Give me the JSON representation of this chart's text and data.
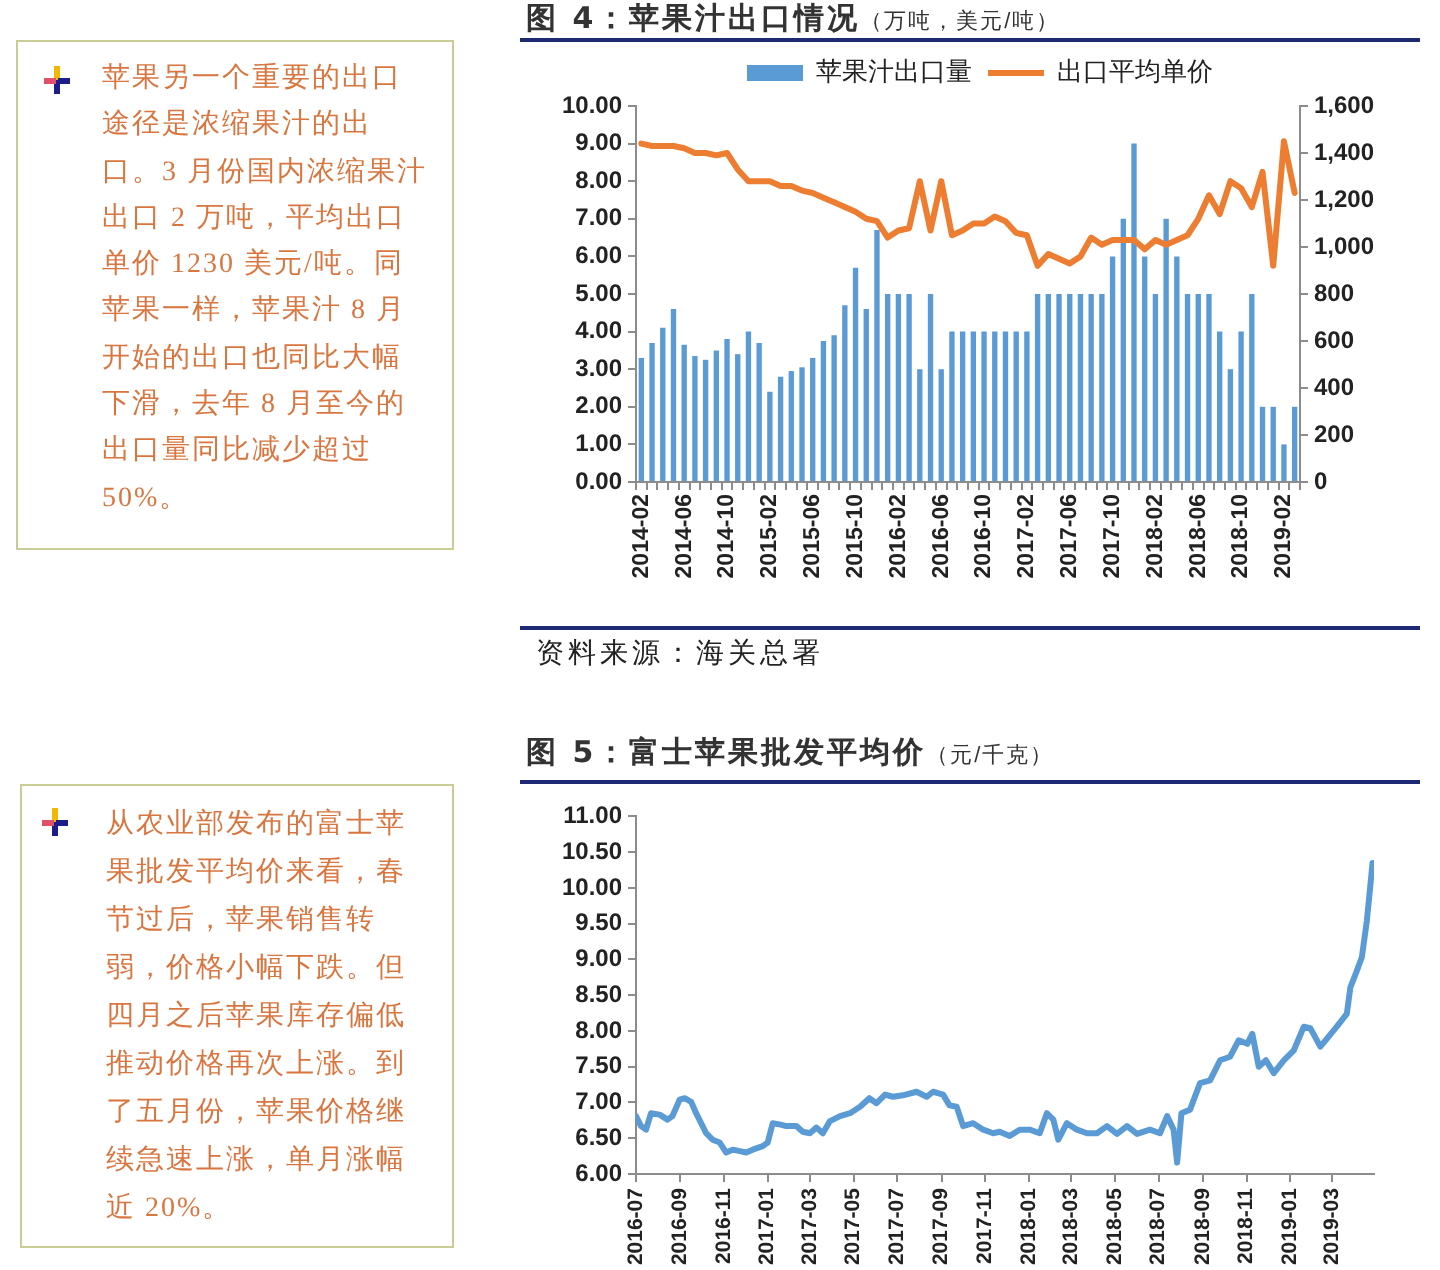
{
  "chart_data": [
    {
      "type": "other",
      "annotations": [
        "苹果另一个重要的出口途径是浓缩果汁的出口。3 月份国内浓缩果汁出口 2 万吨，平均出口单价 1230 美元/吨。同苹果一样，苹果汁 8 月开始的出口也同比大幅下滑，去年 8 月至今的出口量同比减少超过 50%。"
      ]
    },
    {
      "type": "bar",
      "title": "图 4：苹果汁出口情况",
      "subtitle": "（万吨，美元/吨）",
      "categories": [
        "2014-02",
        null,
        null,
        null,
        "2014-06",
        null,
        null,
        null,
        "2014-10",
        null,
        null,
        null,
        "2015-02",
        null,
        null,
        null,
        "2015-06",
        null,
        null,
        null,
        "2015-10",
        null,
        null,
        null,
        "2016-02",
        null,
        null,
        null,
        "2016-06",
        null,
        null,
        null,
        "2016-10",
        null,
        null,
        null,
        "2017-02",
        null,
        null,
        null,
        "2017-06",
        null,
        null,
        null,
        "2017-10",
        null,
        null,
        null,
        "2018-02",
        null,
        null,
        null,
        "2018-06",
        null,
        null,
        null,
        "2018-10",
        null,
        null,
        null,
        "2019-02",
        null
      ],
      "series": [
        {
          "name": "苹果汁出口量",
          "type": "bar",
          "color": "#5b9bd5",
          "values": [
            3.3,
            3.7,
            4.1,
            4.6,
            3.65,
            3.35,
            3.25,
            3.5,
            3.8,
            3.4,
            4.0,
            3.7,
            2.4,
            2.8,
            2.95,
            3.05,
            3.3,
            3.75,
            3.9,
            4.7,
            5.7,
            4.6,
            6.7,
            5.0,
            5.0,
            5.0,
            3.0,
            5.0,
            3.0,
            4.0,
            4.0,
            4.0,
            4.0,
            4.0,
            4.0,
            4.0,
            4.0,
            5.0,
            5.0,
            5.0,
            5.0,
            5.0,
            5.0,
            5.0,
            6.0,
            7.0,
            9.0,
            6.0,
            5.0,
            7.0,
            6.0,
            5.0,
            5.0,
            5.0,
            4.0,
            3.0,
            4.0,
            5.0,
            2.0,
            2.0,
            1.0,
            2.0
          ]
        },
        {
          "name": "出口平均单价",
          "type": "line",
          "axis": "y2",
          "color": "#ed7d31",
          "values": [
            1440,
            1430,
            1430,
            1430,
            1420,
            1400,
            1400,
            1390,
            1400,
            1330,
            1280,
            1280,
            1280,
            1260,
            1260,
            1240,
            1230,
            1210,
            1190,
            1170,
            1150,
            1120,
            1110,
            1040,
            1070,
            1080,
            1280,
            1070,
            1280,
            1050,
            1070,
            1100,
            1100,
            1130,
            1110,
            1060,
            1050,
            920,
            970,
            950,
            930,
            960,
            1040,
            1010,
            1030,
            1030,
            1030,
            990,
            1030,
            1010,
            1030,
            1050,
            1120,
            1220,
            1140,
            1280,
            1250,
            1170,
            1320,
            920,
            1450,
            1230
          ]
        }
      ],
      "ylim": [
        0,
        10
      ],
      "yticks": [
        {
          "value": 0,
          "label": "0.00"
        },
        {
          "value": 1,
          "label": "1.00"
        },
        {
          "value": 2,
          "label": "2.00"
        },
        {
          "value": 3,
          "label": "3.00"
        },
        {
          "value": 4,
          "label": "4.00"
        },
        {
          "value": 5,
          "label": "5.00"
        },
        {
          "value": 6,
          "label": "6.00"
        },
        {
          "value": 7,
          "label": "7.00"
        },
        {
          "value": 8,
          "label": "8.00"
        },
        {
          "value": 9,
          "label": "9.00"
        },
        {
          "value": 10,
          "label": "10.00"
        }
      ],
      "y2lim": [
        0,
        1600
      ],
      "y2ticks": [
        0,
        200,
        400,
        600,
        800,
        {
          "value": 1000,
          "label": "1,000"
        },
        {
          "value": 1200,
          "label": "1,200"
        },
        {
          "value": 1400,
          "label": "1,400"
        },
        {
          "value": 1600,
          "label": "1,600"
        }
      ],
      "legend": "top",
      "annotations": [
        "资料来源：海关总署"
      ]
    },
    {
      "type": "other",
      "annotations": [
        "从农业部发布的富士苹果批发平均价来看，春节过后，苹果销售转弱，价格小幅下跌。但四月之后苹果库存偏低推动价格再次上涨。到了五月份，苹果价格继续急速上涨，单月涨幅近 20%。"
      ]
    },
    {
      "type": "line",
      "title": "图 5：富士苹果批发平均价",
      "subtitle": "（元/千克）",
      "color": "#5b9bd5",
      "x": [
        "2016-07-01",
        "2016-07-08",
        "2016-07-15",
        "2016-07-22",
        "2016-08-03",
        "2016-08-14",
        "2016-08-21",
        "2016-08-31",
        "2016-09-07",
        "2016-09-16",
        "2016-09-23",
        "2016-10-07",
        "2016-10-16",
        "2016-10-26",
        "2016-11-04",
        "2016-11-13",
        "2016-11-23",
        "2016-12-02",
        "2016-12-11",
        "2016-12-25",
        "2017-01-01",
        "2017-01-08",
        "2017-01-19",
        "2017-01-27",
        "2017-02-10",
        "2017-02-19",
        "2017-03-01",
        "2017-03-10",
        "2017-03-19",
        "2017-03-29",
        "2017-04-12",
        "2017-04-26",
        "2017-05-10",
        "2017-05-23",
        "2017-06-02",
        "2017-06-14",
        "2017-06-25",
        "2017-07-09",
        "2017-07-28",
        "2017-08-11",
        "2017-08-20",
        "2017-09-03",
        "2017-09-12",
        "2017-09-22",
        "2017-10-01",
        "2017-10-15",
        "2017-10-29",
        "2017-11-12",
        "2017-11-21",
        "2017-12-05",
        "2017-12-19",
        "2018-01-02",
        "2018-01-16",
        "2018-01-26",
        "2018-02-04",
        "2018-02-11",
        "2018-02-23",
        "2018-03-09",
        "2018-03-23",
        "2018-04-06",
        "2018-04-20",
        "2018-05-04",
        "2018-05-18",
        "2018-06-01",
        "2018-06-19",
        "2018-07-03",
        "2018-07-13",
        "2018-07-22",
        "2018-07-27",
        "2018-08-02",
        "2018-08-14",
        "2018-08-28",
        "2018-09-11",
        "2018-09-25",
        "2018-10-09",
        "2018-10-21",
        "2018-11-02",
        "2018-11-09",
        "2018-11-18",
        "2018-11-28",
        "2018-12-09",
        "2018-12-23",
        "2019-01-06",
        "2019-01-20",
        "2019-01-29",
        "2019-02-12",
        "2019-02-21",
        "2019-03-07",
        "2019-03-21",
        "2019-03-26",
        "2019-04-04",
        "2019-04-11",
        "2019-04-18",
        "2019-04-26"
      ],
      "values": [
        6.81,
        6.67,
        6.62,
        6.85,
        6.83,
        6.76,
        6.81,
        7.04,
        7.06,
        7.01,
        6.85,
        6.57,
        6.48,
        6.44,
        6.3,
        6.34,
        6.32,
        6.3,
        6.34,
        6.39,
        6.44,
        6.71,
        6.69,
        6.67,
        6.67,
        6.59,
        6.57,
        6.65,
        6.57,
        6.74,
        6.81,
        6.85,
        6.94,
        7.06,
        6.99,
        7.11,
        7.08,
        7.1,
        7.15,
        7.08,
        7.15,
        7.11,
        6.96,
        6.94,
        6.67,
        6.71,
        6.62,
        6.57,
        6.59,
        6.53,
        6.62,
        6.62,
        6.57,
        6.85,
        6.76,
        6.48,
        6.71,
        6.62,
        6.57,
        6.57,
        6.67,
        6.56,
        6.67,
        6.56,
        6.62,
        6.57,
        6.81,
        6.62,
        6.16,
        6.85,
        6.9,
        7.27,
        7.31,
        7.59,
        7.64,
        7.87,
        7.82,
        7.96,
        7.5,
        7.59,
        7.41,
        7.59,
        7.73,
        8.06,
        8.04,
        7.78,
        7.89,
        8.06,
        8.24,
        8.61,
        8.84,
        9.03,
        9.54,
        10.35
      ],
      "xlim": [
        "2016-07-01",
        "2019-04-28"
      ],
      "xticks": [
        "2016-07",
        "2016-09",
        "2016-11",
        "2017-01",
        "2017-03",
        "2017-05",
        "2017-07",
        "2017-09",
        "2017-11",
        "2018-01",
        "2018-03",
        "2018-05",
        "2018-07",
        "2018-09",
        "2018-11",
        "2019-01",
        "2019-03"
      ],
      "ylim": [
        6,
        11
      ],
      "yticks": [
        {
          "value": 6,
          "label": "6.00"
        },
        {
          "value": 6.5,
          "label": "6.50"
        },
        {
          "value": 7,
          "label": "7.00"
        },
        {
          "value": 7.5,
          "label": "7.50"
        },
        {
          "value": 8,
          "label": "8.00"
        },
        {
          "value": 8.5,
          "label": "8.50"
        },
        {
          "value": 9,
          "label": "9.00"
        },
        {
          "value": 9.5,
          "label": "9.50"
        },
        {
          "value": 10,
          "label": "10.00"
        },
        {
          "value": 10.5,
          "label": "10.50"
        },
        {
          "value": 11,
          "label": "11.00"
        }
      ]
    }
  ]
}
